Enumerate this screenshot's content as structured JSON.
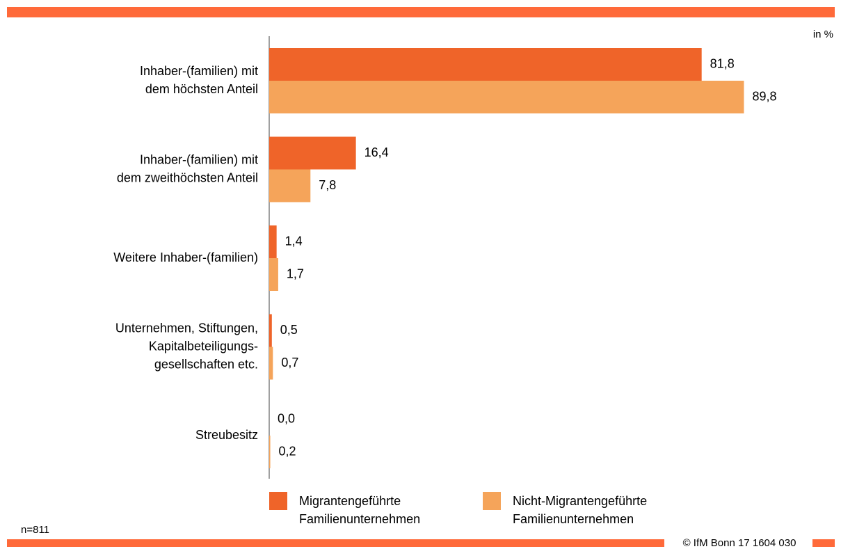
{
  "chart_data": {
    "type": "barh",
    "unit_note": "in %",
    "sample_note": "n=811",
    "copyright": "© IfM Bonn 17 1604 030",
    "categories": [
      [
        "Inhaber-(familien) mit",
        "dem höchsten Anteil"
      ],
      [
        "Inhaber-(familien) mit",
        "dem zweithöchsten Anteil"
      ],
      [
        "Weitere Inhaber-(familien)"
      ],
      [
        "Unternehmen, Stiftungen,",
        "Kapitalbeteiligungs-",
        "gesellschaften etc."
      ],
      [
        "Streubesitz"
      ]
    ],
    "series": [
      {
        "name": [
          "Migrantengeführte",
          "Familienunternehmen"
        ],
        "color": "#ef6429",
        "values": [
          81.8,
          16.4,
          1.4,
          0.5,
          0.0
        ],
        "value_labels": [
          "81,8",
          "16,4",
          "1,4",
          "0,5",
          "0,0"
        ]
      },
      {
        "name": [
          "Nicht-Migrantengeführte",
          "Familienunternehmen"
        ],
        "color": "#f5a45a",
        "values": [
          89.8,
          7.8,
          1.7,
          0.7,
          0.2
        ],
        "value_labels": [
          "89,8",
          "7,8",
          "1,7",
          "0,7",
          "0,2"
        ]
      }
    ],
    "xlim": [
      0,
      100
    ]
  }
}
